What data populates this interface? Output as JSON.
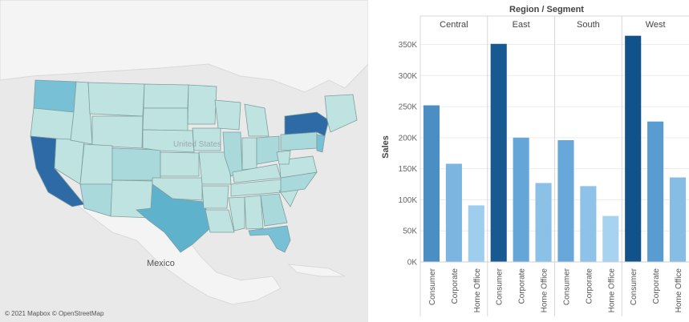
{
  "map": {
    "labels": {
      "mexico": "Mexico",
      "united_states": "United States"
    },
    "attribution": "© 2021 Mapbox © OpenStreetMap",
    "colors": {
      "water": "#e9e9e9",
      "land": "#f4f4f4",
      "state_low": "#bfe3e1",
      "state_mid": "#78c0d6",
      "state_high": "#3a7fb8",
      "state_top": "#2e6ba6",
      "border": "#7f9e9e"
    }
  },
  "chart_data": {
    "type": "bar",
    "title": "Region / Segment",
    "ylabel": "Sales",
    "ylim": [
      0,
      370000
    ],
    "yticks": [
      0,
      50000,
      100000,
      150000,
      200000,
      250000,
      300000,
      350000
    ],
    "ytick_labels": [
      "0K",
      "50K",
      "100K",
      "150K",
      "200K",
      "250K",
      "300K",
      "350K"
    ],
    "categories": [
      "Consumer",
      "Corporate",
      "Home Office"
    ],
    "regions": [
      {
        "name": "Central",
        "values": [
          252000,
          158000,
          91000
        ]
      },
      {
        "name": "East",
        "values": [
          351000,
          200000,
          127000
        ]
      },
      {
        "name": "South",
        "values": [
          196000,
          122000,
          74000
        ]
      },
      {
        "name": "West",
        "values": [
          364000,
          226000,
          136000
        ]
      }
    ],
    "color_scale": {
      "low": "#a9d4f2",
      "mid": "#5b9fd4",
      "high": "#0d4f86"
    }
  }
}
